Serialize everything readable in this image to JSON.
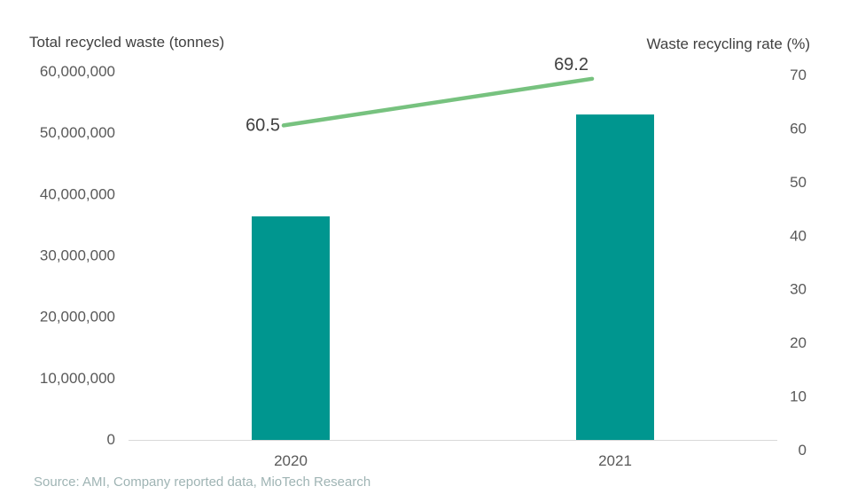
{
  "chart_data": {
    "type": "bar",
    "categories": [
      "2020",
      "2021"
    ],
    "series": [
      {
        "axis": "left",
        "type": "bar",
        "color": "#00968f",
        "values": [
          36300000,
          52900000
        ]
      },
      {
        "axis": "right",
        "type": "line",
        "color": "#77c27f",
        "values": [
          60.5,
          69.2
        ],
        "value_labels": [
          "60.5",
          "69.2"
        ]
      }
    ],
    "ylabel": "Total recycled waste (tonnes)",
    "ylim": [
      0,
      60000000
    ],
    "yticks": [
      "0",
      "10,000,000",
      "20,000,000",
      "30,000,000",
      "40,000,000",
      "50,000,000",
      "60,000,000"
    ],
    "y2label": "Waste recycling rate (%)",
    "y2lim": [
      0,
      70
    ],
    "y2ticks": [
      "0",
      "10",
      "20",
      "30",
      "40",
      "50",
      "60",
      "70"
    ],
    "grid": false,
    "source": "Source: AMI, Company reported data, MioTech Research"
  }
}
